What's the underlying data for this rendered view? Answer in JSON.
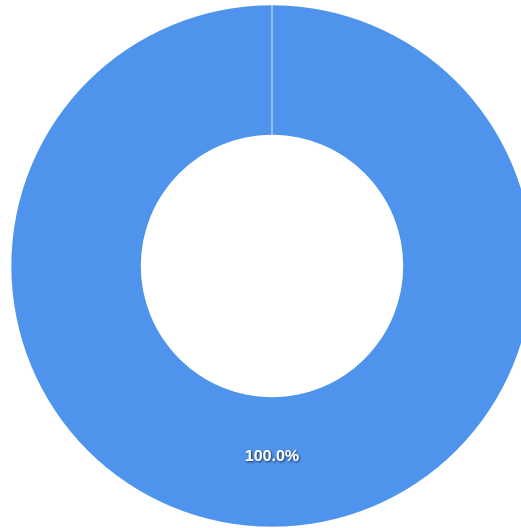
{
  "chart_data": {
    "type": "donut",
    "values": [
      100
    ],
    "value_labels": [
      "100.0%"
    ],
    "colors": [
      "#4f94ec"
    ]
  }
}
